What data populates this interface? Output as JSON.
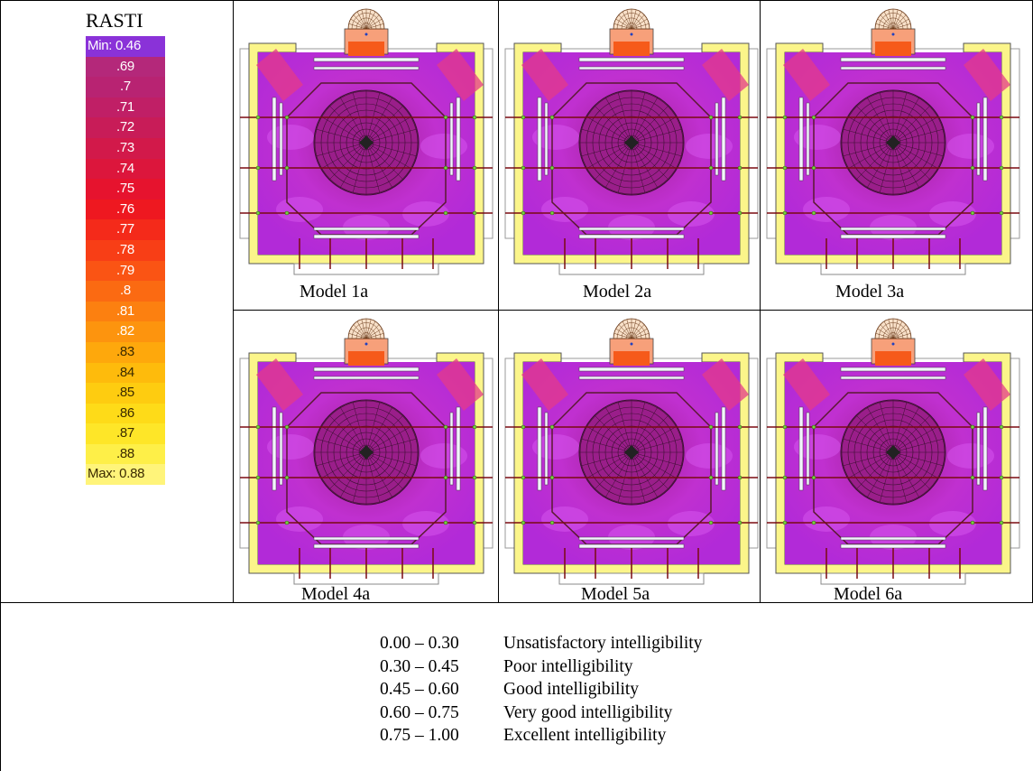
{
  "legend": {
    "title": "RASTI",
    "scale": [
      {
        "label": "Min:  0.46",
        "color": "#8a32d8"
      },
      {
        "label": ".69",
        "color": "#b4287a"
      },
      {
        "label": ".7",
        "color": "#b82372"
      },
      {
        "label": ".71",
        "color": "#c01f66"
      },
      {
        "label": ".72",
        "color": "#c81c58"
      },
      {
        "label": ".73",
        "color": "#d2194a"
      },
      {
        "label": ".74",
        "color": "#dc163c"
      },
      {
        "label": ".75",
        "color": "#e6132e"
      },
      {
        "label": ".76",
        "color": "#ee1820"
      },
      {
        "label": ".77",
        "color": "#f42a1a"
      },
      {
        "label": ".78",
        "color": "#f83e16"
      },
      {
        "label": ".79",
        "color": "#fa5414"
      },
      {
        "label": ".8",
        "color": "#fb6a12"
      },
      {
        "label": ".81",
        "color": "#fc8010"
      },
      {
        "label": ".82",
        "color": "#fd940e"
      },
      {
        "label": ".83",
        "color": "#fea80c"
      },
      {
        "label": ".84",
        "color": "#febb0c"
      },
      {
        "label": ".85",
        "color": "#fecc10"
      },
      {
        "label": ".86",
        "color": "#fedb18"
      },
      {
        "label": ".87",
        "color": "#fee628"
      },
      {
        "label": ".88",
        "color": "#feef48"
      },
      {
        "label": "Max:  0.88",
        "color": "#fff47a"
      }
    ]
  },
  "models": [
    {
      "caption": "Model 1a"
    },
    {
      "caption": "Model 2a"
    },
    {
      "caption": "Model 3a"
    },
    {
      "caption": "Model 4a"
    },
    {
      "caption": "Model 5a"
    },
    {
      "caption": "Model 6a"
    }
  ],
  "intelligibility": [
    {
      "range": "0.00 – 0.30",
      "label": "Unsatisfactory intelligibility"
    },
    {
      "range": "0.30 – 0.45",
      "label": "Poor intelligibility"
    },
    {
      "range": "0.45 – 0.60",
      "label": "Good intelligibility"
    },
    {
      "range": "0.60 – 0.75",
      "label": "Very good intelligibility"
    },
    {
      "range": "0.75 – 1.00",
      "label": "Excellent intelligibility"
    }
  ]
}
